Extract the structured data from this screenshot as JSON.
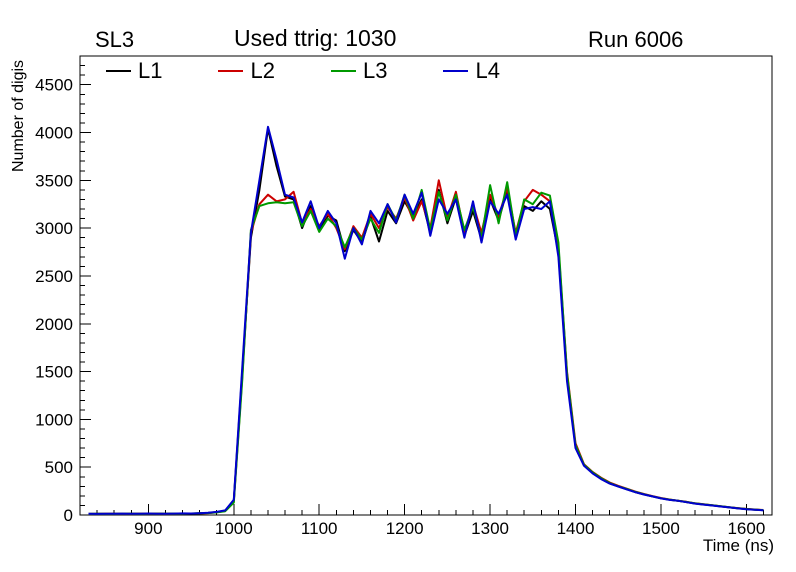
{
  "header": {
    "left_title": "SL3",
    "center_title": "Used ttrig: 1030",
    "right_title": "Run 6006"
  },
  "chart_data": {
    "type": "line",
    "title": "Used ttrig: 1030",
    "xlabel": "Time (ns)",
    "ylabel": "Number of digis",
    "xlim": [
      820,
      1630
    ],
    "ylim": [
      0,
      4800
    ],
    "xticks": [
      900,
      1000,
      1100,
      1200,
      1300,
      1400,
      1500,
      1600
    ],
    "yticks": [
      0,
      500,
      1000,
      1500,
      2000,
      2500,
      3000,
      3500,
      4000,
      4500
    ],
    "x_minor_step": 20,
    "y_minor_step": 100,
    "grid": false,
    "legend_position": "top",
    "x": [
      830,
      840,
      850,
      860,
      870,
      880,
      890,
      900,
      910,
      920,
      930,
      940,
      950,
      960,
      970,
      980,
      990,
      1000,
      1010,
      1020,
      1030,
      1040,
      1050,
      1060,
      1070,
      1080,
      1090,
      1100,
      1110,
      1120,
      1130,
      1140,
      1150,
      1160,
      1170,
      1180,
      1190,
      1200,
      1210,
      1220,
      1230,
      1240,
      1250,
      1260,
      1270,
      1280,
      1290,
      1300,
      1310,
      1320,
      1330,
      1340,
      1350,
      1360,
      1370,
      1380,
      1390,
      1400,
      1410,
      1420,
      1430,
      1440,
      1450,
      1460,
      1470,
      1480,
      1490,
      1500,
      1510,
      1520,
      1530,
      1540,
      1550,
      1560,
      1570,
      1580,
      1590,
      1600,
      1610,
      1620
    ],
    "series": [
      {
        "name": "L1",
        "color": "#000000",
        "values": [
          10,
          12,
          11,
          13,
          12,
          14,
          13,
          12,
          15,
          14,
          13,
          16,
          15,
          18,
          22,
          30,
          45,
          150,
          1500,
          2900,
          3400,
          4040,
          3650,
          3330,
          3300,
          3000,
          3230,
          2980,
          3130,
          3080,
          2760,
          2980,
          2850,
          3120,
          2860,
          3180,
          3050,
          3280,
          3120,
          3300,
          2950,
          3400,
          3050,
          3320,
          2920,
          3180,
          2880,
          3300,
          3080,
          3400,
          2900,
          3230,
          3180,
          3280,
          3200,
          2750,
          1450,
          720,
          520,
          440,
          380,
          330,
          300,
          270,
          240,
          215,
          195,
          175,
          160,
          150,
          135,
          120,
          110,
          100,
          90,
          80,
          70,
          62,
          55,
          50
        ]
      },
      {
        "name": "L2",
        "color": "#cc0000",
        "values": [
          12,
          11,
          13,
          12,
          14,
          12,
          13,
          15,
          13,
          12,
          14,
          15,
          16,
          17,
          20,
          28,
          42,
          140,
          1450,
          2950,
          3250,
          3350,
          3280,
          3300,
          3380,
          3050,
          3200,
          3020,
          3150,
          3000,
          2780,
          3020,
          2900,
          3150,
          3000,
          3220,
          3100,
          3320,
          3080,
          3280,
          3000,
          3500,
          3100,
          3380,
          2950,
          3250,
          2950,
          3350,
          3120,
          3420,
          2950,
          3280,
          3400,
          3350,
          3280,
          2800,
          1500,
          750,
          530,
          450,
          390,
          340,
          305,
          275,
          245,
          220,
          198,
          178,
          162,
          150,
          138,
          122,
          112,
          102,
          92,
          82,
          72,
          64,
          57,
          52
        ]
      },
      {
        "name": "L3",
        "color": "#009900",
        "values": [
          11,
          13,
          12,
          12,
          13,
          14,
          12,
          13,
          14,
          13,
          15,
          14,
          16,
          18,
          21,
          27,
          40,
          130,
          1420,
          2980,
          3230,
          3260,
          3270,
          3260,
          3270,
          3020,
          3180,
          2960,
          3100,
          3020,
          2800,
          3000,
          2880,
          3100,
          2950,
          3250,
          3080,
          3350,
          3100,
          3400,
          2980,
          3380,
          3080,
          3350,
          2980,
          3220,
          2900,
          3450,
          3050,
          3480,
          2920,
          3300,
          3250,
          3370,
          3340,
          2850,
          1480,
          730,
          525,
          445,
          385,
          335,
          300,
          272,
          242,
          218,
          196,
          176,
          161,
          149,
          136,
          121,
          111,
          101,
          91,
          81,
          71,
          63,
          56,
          51
        ]
      },
      {
        "name": "L4",
        "color": "#0000cc",
        "values": [
          13,
          12,
          14,
          13,
          15,
          13,
          14,
          16,
          14,
          13,
          15,
          17,
          16,
          19,
          23,
          32,
          48,
          160,
          1550,
          2950,
          3500,
          4060,
          3720,
          3350,
          3320,
          3060,
          3280,
          3000,
          3180,
          3050,
          2680,
          3000,
          2830,
          3180,
          3050,
          3250,
          3060,
          3350,
          3150,
          3370,
          2920,
          3300,
          3150,
          3300,
          2900,
          3280,
          2850,
          3280,
          3150,
          3350,
          2880,
          3200,
          3220,
          3200,
          3280,
          2700,
          1400,
          700,
          515,
          435,
          375,
          328,
          298,
          268,
          238,
          214,
          194,
          174,
          158,
          148,
          134,
          119,
          109,
          99,
          89,
          79,
          69,
          61,
          54,
          49
        ]
      }
    ]
  }
}
